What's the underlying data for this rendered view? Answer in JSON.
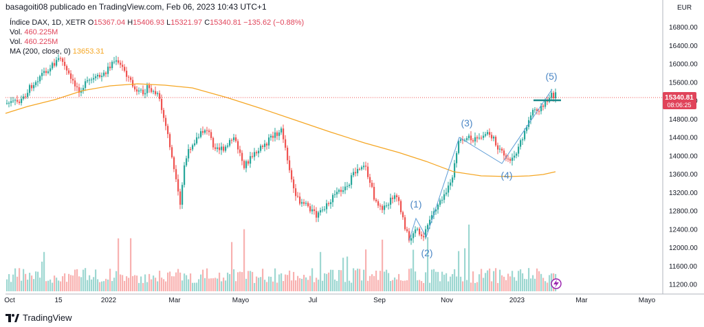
{
  "header": {
    "publisher": "basagoiti08 publicado en TradingView.com, Feb 06, 2023 10:43 UTC+1"
  },
  "legend": {
    "symbol": "Índice DAX, 1D, XETR",
    "o_label": "O",
    "o": "15367.04",
    "h_label": "H",
    "h": "15406.93",
    "l_label": "L",
    "l": "15321.97",
    "c_label": "C",
    "c": "15340.81",
    "change": "−135.62 (−0.88%)",
    "vol1_label": "Vol.",
    "vol1": "460.225M",
    "vol2_label": "Vol.",
    "vol2": "460.225M",
    "ma_label": "MA (200, close, 0)",
    "ma": "13653.31"
  },
  "price_axis": {
    "currency": "EUR",
    "ticks": [
      "16800.00",
      "16400.00",
      "16000.00",
      "15600.00",
      "15200.00",
      "14800.00",
      "14400.00",
      "14000.00",
      "13600.00",
      "13200.00",
      "12800.00",
      "12400.00",
      "12000.00",
      "11600.00",
      "11200.00"
    ],
    "last_price": "15340.81",
    "countdown": "08:06:25"
  },
  "time_axis": {
    "ticks": [
      "Oct",
      "15",
      "2022",
      "Mar",
      "Mayo",
      "Jul",
      "Sep",
      "Nov",
      "2023",
      "Mar",
      "Mayo"
    ]
  },
  "wave_labels": [
    "(1)",
    "(2)",
    "(3)",
    "(4)",
    "(5)"
  ],
  "footer": {
    "brand": "TradingView"
  },
  "colors": {
    "up": "#26a69a",
    "down": "#ef5350",
    "ma": "#f5a623",
    "wave": "#5b9bd5",
    "resistance": "#1a8a8a",
    "label_bg": "#e0445a"
  },
  "chart_data": {
    "type": "candlestick",
    "title": "Índice DAX, 1D, XETR",
    "ylabel": "EUR",
    "ylim": [
      11000,
      17100
    ],
    "x": [
      "2021-10",
      "2021-11",
      "2021-12",
      "2022-01",
      "2022-02",
      "2022-03",
      "2022-04",
      "2022-05",
      "2022-06",
      "2022-07",
      "2022-08",
      "2022-09",
      "2022-10",
      "2022-11",
      "2022-12",
      "2023-01",
      "2023-02"
    ],
    "series": [
      {
        "name": "Índice DAX",
        "values": [
          15200,
          15900,
          15700,
          16100,
          15400,
          14100,
          14300,
          14200,
          13200,
          13400,
          13700,
          12300,
          12800,
          14400,
          14000,
          15100,
          15340.81
        ]
      },
      {
        "name": "MA (200, close, 0)",
        "values": [
          15100,
          15300,
          15450,
          15600,
          15650,
          15620,
          15500,
          15250,
          14900,
          14550,
          14200,
          13900,
          13700,
          13600,
          13560,
          13600,
          13653.31
        ]
      }
    ],
    "last": {
      "open": 15367.04,
      "high": 15406.93,
      "low": 15321.97,
      "close": 15340.81,
      "change": -135.62,
      "change_pct": -0.88
    },
    "volume": "460.225M",
    "waves": [
      {
        "label": "(1)",
        "value": 12700
      },
      {
        "label": "(2)",
        "value": 11990
      },
      {
        "label": "(3)",
        "value": 14450
      },
      {
        "label": "(4)",
        "value": 13850
      },
      {
        "label": "(5)",
        "value": 15600
      }
    ],
    "resistance": 15250
  }
}
